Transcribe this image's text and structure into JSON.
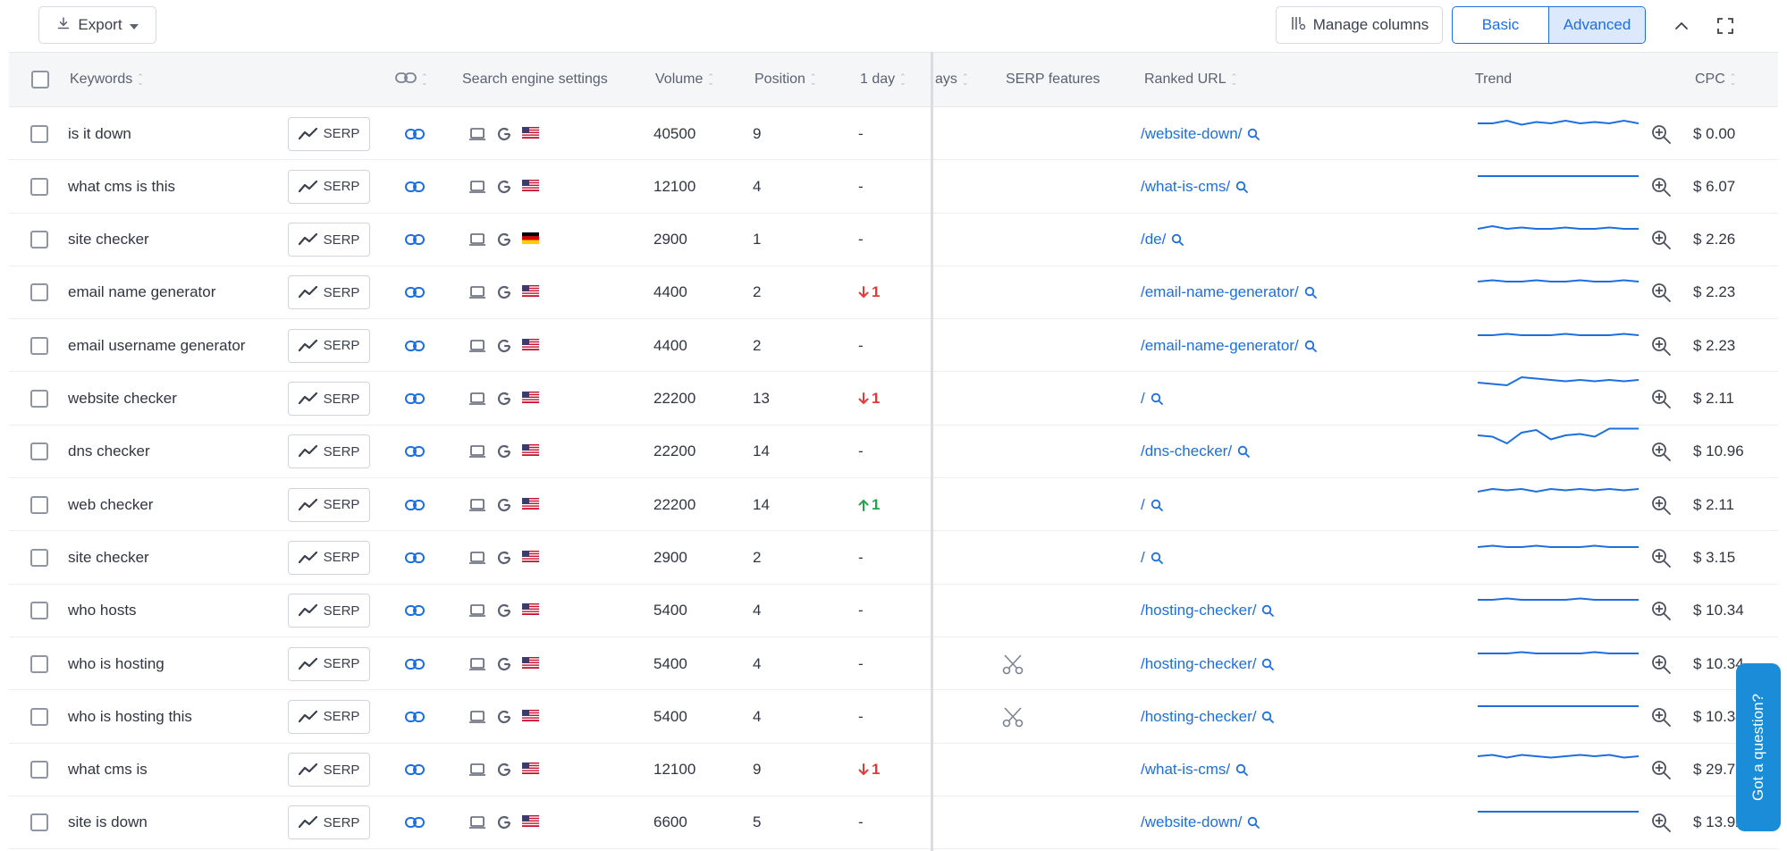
{
  "toolbar": {
    "export_label": "Export",
    "manage_columns_label": "Manage columns",
    "view_basic_label": "Basic",
    "view_advanced_label": "Advanced",
    "active_view": "Advanced"
  },
  "columns": {
    "keywords": "Keywords",
    "search_engine_settings": "Search engine settings",
    "volume": "Volume",
    "position": "Position",
    "one_day": "1 day",
    "days_partial": "ays",
    "serp_features": "SERP features",
    "ranked_url": "Ranked URL",
    "trend": "Trend",
    "cpc": "CPC"
  },
  "serp_label": "SERP",
  "rows": [
    {
      "keyword": "is it down",
      "country": "us",
      "volume": "40500",
      "position": "9",
      "change": "-",
      "change_dir": "none",
      "serp_feature": false,
      "url": "/website-down/",
      "trend": [
        0.5,
        0.5,
        0.4,
        0.55,
        0.45,
        0.5,
        0.4,
        0.5,
        0.45,
        0.5,
        0.4,
        0.5
      ],
      "cpc": "$ 0.00"
    },
    {
      "keyword": "what cms is this",
      "country": "us",
      "volume": "12100",
      "position": "4",
      "change": "-",
      "change_dir": "none",
      "serp_feature": false,
      "url": "/what-is-cms/",
      "trend": [
        0.5,
        0.5,
        0.5,
        0.5,
        0.5,
        0.5,
        0.5,
        0.5,
        0.5,
        0.5,
        0.5,
        0.5
      ],
      "cpc": "$ 6.07"
    },
    {
      "keyword": "site checker",
      "country": "de",
      "volume": "2900",
      "position": "1",
      "change": "-",
      "change_dir": "none",
      "serp_feature": false,
      "url": "/de/",
      "trend": [
        0.5,
        0.4,
        0.5,
        0.45,
        0.5,
        0.5,
        0.45,
        0.5,
        0.5,
        0.45,
        0.5,
        0.5
      ],
      "cpc": "$ 2.26"
    },
    {
      "keyword": "email name generator",
      "country": "us",
      "volume": "4400",
      "position": "2",
      "change": "1",
      "change_dir": "down",
      "serp_feature": false,
      "url": "/email-name-generator/",
      "trend": [
        0.5,
        0.45,
        0.5,
        0.5,
        0.45,
        0.5,
        0.5,
        0.45,
        0.5,
        0.5,
        0.45,
        0.5
      ],
      "cpc": "$ 2.23"
    },
    {
      "keyword": "email username generator",
      "country": "us",
      "volume": "4400",
      "position": "2",
      "change": "-",
      "change_dir": "none",
      "serp_feature": false,
      "url": "/email-name-generator/",
      "trend": [
        0.5,
        0.5,
        0.45,
        0.5,
        0.5,
        0.5,
        0.45,
        0.5,
        0.5,
        0.5,
        0.45,
        0.5
      ],
      "cpc": "$ 2.23"
    },
    {
      "keyword": "website checker",
      "country": "us",
      "volume": "22200",
      "position": "13",
      "change": "1",
      "change_dir": "down",
      "serp_feature": false,
      "url": "/",
      "trend": [
        0.3,
        0.35,
        0.4,
        0.1,
        0.15,
        0.2,
        0.25,
        0.2,
        0.25,
        0.2,
        0.25,
        0.2
      ],
      "cpc": "$ 2.11"
    },
    {
      "keyword": "dns checker",
      "country": "us",
      "volume": "22200",
      "position": "14",
      "change": "-",
      "change_dir": "none",
      "serp_feature": false,
      "url": "/dns-checker/",
      "trend": [
        0.3,
        0.35,
        0.6,
        0.2,
        0.1,
        0.45,
        0.3,
        0.25,
        0.35,
        0.05,
        0.05,
        0.05
      ],
      "cpc": "$ 10.96"
    },
    {
      "keyword": "web checker",
      "country": "us",
      "volume": "22200",
      "position": "14",
      "change": "1",
      "change_dir": "up",
      "serp_feature": false,
      "url": "/",
      "trend": [
        0.4,
        0.3,
        0.35,
        0.3,
        0.4,
        0.3,
        0.35,
        0.3,
        0.35,
        0.3,
        0.35,
        0.3
      ],
      "cpc": "$ 2.11"
    },
    {
      "keyword": "site checker",
      "country": "us",
      "volume": "2900",
      "position": "2",
      "change": "-",
      "change_dir": "none",
      "serp_feature": false,
      "url": "/",
      "trend": [
        0.5,
        0.45,
        0.5,
        0.5,
        0.45,
        0.5,
        0.5,
        0.5,
        0.45,
        0.5,
        0.5,
        0.5
      ],
      "cpc": "$ 3.15"
    },
    {
      "keyword": "who hosts",
      "country": "us",
      "volume": "5400",
      "position": "4",
      "change": "-",
      "change_dir": "none",
      "serp_feature": false,
      "url": "/hosting-checker/",
      "trend": [
        0.5,
        0.5,
        0.45,
        0.5,
        0.5,
        0.5,
        0.5,
        0.45,
        0.5,
        0.5,
        0.5,
        0.5
      ],
      "cpc": "$ 10.34"
    },
    {
      "keyword": "who is hosting",
      "country": "us",
      "volume": "5400",
      "position": "4",
      "change": "-",
      "change_dir": "none",
      "serp_feature": true,
      "url": "/hosting-checker/",
      "trend": [
        0.5,
        0.5,
        0.5,
        0.45,
        0.5,
        0.5,
        0.5,
        0.5,
        0.45,
        0.5,
        0.5,
        0.5
      ],
      "cpc": "$ 10.34"
    },
    {
      "keyword": "who is hosting this",
      "country": "us",
      "volume": "5400",
      "position": "4",
      "change": "-",
      "change_dir": "none",
      "serp_feature": true,
      "url": "/hosting-checker/",
      "trend": [
        0.5,
        0.5,
        0.5,
        0.5,
        0.5,
        0.5,
        0.5,
        0.5,
        0.5,
        0.5,
        0.5,
        0.5
      ],
      "cpc": "$ 10.34"
    },
    {
      "keyword": "what cms is",
      "country": "us",
      "volume": "12100",
      "position": "9",
      "change": "1",
      "change_dir": "down",
      "serp_feature": false,
      "url": "/what-is-cms/",
      "trend": [
        0.4,
        0.35,
        0.45,
        0.35,
        0.4,
        0.45,
        0.4,
        0.35,
        0.4,
        0.35,
        0.45,
        0.4
      ],
      "cpc": "$ 29.7"
    },
    {
      "keyword": "site is down",
      "country": "us",
      "volume": "6600",
      "position": "5",
      "change": "-",
      "change_dir": "none",
      "serp_feature": false,
      "url": "/website-down/",
      "trend": [
        0.5,
        0.5,
        0.5,
        0.5,
        0.5,
        0.5,
        0.5,
        0.5,
        0.5,
        0.5,
        0.5,
        0.5
      ],
      "cpc": "$ 13.92"
    }
  ],
  "help_widget": {
    "label": "Got a question?"
  },
  "colors": {
    "accent": "#1d6fe0",
    "down": "#e53935",
    "up": "#22a34a"
  }
}
